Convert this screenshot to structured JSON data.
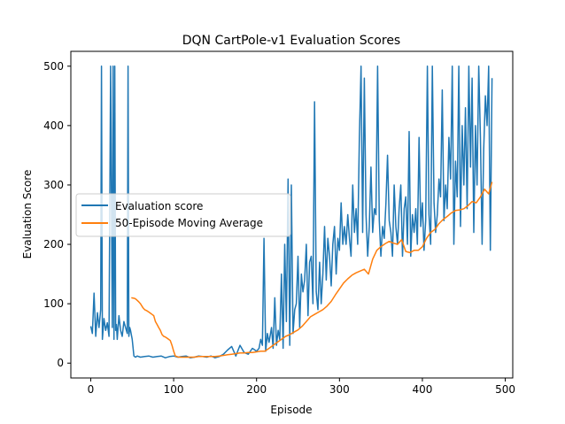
{
  "chart_data": {
    "type": "line",
    "title": "DQN CartPole-v1 Evaluation Scores",
    "xlabel": "Episode",
    "ylabel": "Evaluation Score",
    "xlim": [
      -24,
      509
    ],
    "ylim": [
      -25,
      525
    ],
    "xticks": [
      0,
      100,
      200,
      300,
      400,
      500
    ],
    "yticks": [
      0,
      100,
      200,
      300,
      400,
      500
    ],
    "grid": false,
    "legend_position": "center-left",
    "series": [
      {
        "name": "Evaluation score",
        "color": "#1f77b4",
        "x": [
          0,
          2,
          4,
          6,
          8,
          10,
          12,
          13,
          14,
          16,
          18,
          20,
          22,
          24,
          26,
          27,
          28,
          29,
          30,
          31,
          32,
          34,
          36,
          38,
          40,
          42,
          44,
          45,
          46,
          47,
          48,
          50,
          52,
          54,
          56,
          60,
          65,
          70,
          75,
          80,
          85,
          90,
          95,
          100,
          105,
          110,
          115,
          120,
          125,
          130,
          135,
          140,
          145,
          150,
          155,
          160,
          165,
          170,
          175,
          180,
          185,
          190,
          195,
          200,
          203,
          205,
          207,
          209,
          211,
          213,
          215,
          218,
          220,
          222,
          224,
          226,
          228,
          230,
          232,
          234,
          236,
          238,
          240,
          242,
          244,
          246,
          248,
          250,
          252,
          254,
          256,
          258,
          260,
          262,
          264,
          266,
          268,
          270,
          272,
          274,
          276,
          278,
          280,
          282,
          284,
          286,
          288,
          290,
          292,
          294,
          296,
          298,
          300,
          302,
          304,
          306,
          308,
          310,
          312,
          314,
          316,
          318,
          320,
          322,
          324,
          326,
          328,
          330,
          332,
          334,
          336,
          338,
          340,
          342,
          344,
          346,
          348,
          350,
          352,
          354,
          356,
          358,
          360,
          362,
          364,
          366,
          368,
          370,
          372,
          374,
          376,
          378,
          380,
          382,
          384,
          386,
          388,
          390,
          392,
          394,
          396,
          398,
          400,
          402,
          404,
          406,
          408,
          410,
          412,
          414,
          416,
          418,
          420,
          422,
          424,
          426,
          428,
          430,
          432,
          434,
          436,
          438,
          440,
          442,
          444,
          446,
          448,
          450,
          452,
          454,
          456,
          458,
          460,
          462,
          464,
          466,
          468,
          470,
          472,
          474,
          476,
          478,
          480,
          482,
          484
        ],
        "y": [
          62,
          50,
          118,
          45,
          85,
          60,
          90,
          500,
          40,
          75,
          55,
          68,
          45,
          500,
          60,
          500,
          40,
          500,
          55,
          65,
          40,
          80,
          55,
          45,
          70,
          60,
          50,
          500,
          45,
          60,
          55,
          40,
          12,
          10,
          12,
          10,
          11,
          12,
          10,
          11,
          12,
          9,
          11,
          12,
          10,
          11,
          12,
          9,
          10,
          12,
          11,
          10,
          12,
          9,
          11,
          15,
          22,
          28,
          12,
          30,
          18,
          15,
          25,
          20,
          25,
          40,
          30,
          210,
          20,
          50,
          35,
          60,
          25,
          110,
          30,
          55,
          40,
          150,
          25,
          200,
          70,
          310,
          30,
          300,
          50,
          90,
          100,
          180,
          60,
          150,
          120,
          140,
          200,
          80,
          170,
          180,
          100,
          440,
          120,
          90,
          170,
          100,
          150,
          230,
          140,
          210,
          180,
          130,
          200,
          230,
          150,
          210,
          190,
          270,
          200,
          230,
          200,
          250,
          210,
          180,
          300,
          220,
          260,
          200,
          380,
          500,
          220,
          480,
          250,
          180,
          230,
          330,
          220,
          260,
          250,
          500,
          240,
          180,
          230,
          210,
          270,
          350,
          240,
          220,
          180,
          300,
          230,
          200,
          260,
          300,
          180,
          260,
          280,
          200,
          390,
          180,
          250,
          220,
          260,
          200,
          380,
          230,
          270,
          190,
          240,
          500,
          250,
          200,
          500,
          270,
          220,
          250,
          310,
          280,
          460,
          240,
          300,
          260,
          380,
          310,
          500,
          200,
          340,
          280,
          500,
          230,
          400,
          300,
          430,
          260,
          500,
          330,
          480,
          220,
          400,
          300,
          500,
          380,
          200,
          360,
          450,
          400,
          500,
          190,
          480
        ]
      },
      {
        "name": "50-Episode Moving Average",
        "color": "#ff7f0e",
        "x": [
          49,
          53,
          55,
          58,
          60,
          63,
          65,
          68,
          70,
          72,
          74,
          76,
          78,
          80,
          82,
          84,
          86,
          88,
          90,
          92,
          94,
          96,
          98,
          100,
          102,
          104,
          106,
          110,
          115,
          120,
          125,
          130,
          135,
          140,
          145,
          150,
          155,
          160,
          165,
          170,
          175,
          180,
          185,
          190,
          195,
          200,
          205,
          210,
          215,
          220,
          225,
          230,
          235,
          240,
          245,
          250,
          255,
          260,
          265,
          270,
          275,
          280,
          285,
          290,
          295,
          300,
          305,
          310,
          315,
          320,
          325,
          330,
          335,
          340,
          345,
          350,
          355,
          360,
          365,
          370,
          375,
          380,
          385,
          390,
          395,
          400,
          405,
          410,
          415,
          420,
          425,
          430,
          435,
          440,
          445,
          450,
          455,
          460,
          465,
          470,
          475,
          480,
          484
        ],
        "y": [
          110,
          109,
          107,
          103,
          100,
          93,
          90,
          88,
          86,
          84,
          82,
          80,
          70,
          65,
          60,
          55,
          48,
          45,
          44,
          42,
          40,
          38,
          30,
          20,
          12,
          11,
          10,
          10,
          10,
          10,
          10,
          11,
          11,
          11,
          11,
          11,
          12,
          13,
          14,
          15,
          16,
          17,
          17,
          18,
          18,
          19,
          20,
          20,
          25,
          30,
          35,
          40,
          45,
          48,
          52,
          56,
          62,
          70,
          78,
          82,
          86,
          90,
          96,
          104,
          115,
          125,
          135,
          142,
          148,
          152,
          155,
          158,
          150,
          175,
          190,
          196,
          201,
          205,
          202,
          200,
          208,
          188,
          186,
          190,
          190,
          196,
          210,
          220,
          225,
          235,
          242,
          247,
          253,
          257,
          258,
          260,
          265,
          272,
          270,
          280,
          293,
          285,
          305
        ]
      }
    ]
  }
}
